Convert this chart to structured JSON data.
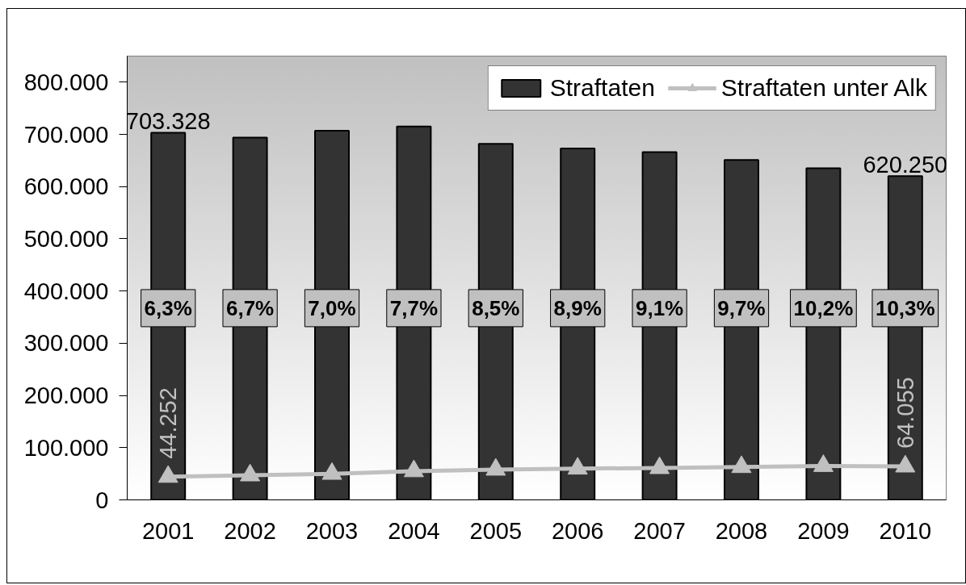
{
  "chart_data": {
    "type": "bar",
    "categories": [
      "2001",
      "2002",
      "2003",
      "2004",
      "2005",
      "2006",
      "2007",
      "2008",
      "2009",
      "2010"
    ],
    "series": [
      {
        "name": "Straftaten",
        "color": "#333333",
        "values": [
          703328,
          694000,
          707000,
          715000,
          682000,
          673000,
          666000,
          651000,
          635000,
          620250
        ],
        "value_labels": [
          "703.328",
          null,
          null,
          null,
          null,
          null,
          null,
          null,
          null,
          "620.250"
        ]
      },
      {
        "name": "Straftaten unter Alk",
        "type": "line",
        "color": "#c0c0c0",
        "values": [
          44252,
          47000,
          50000,
          55000,
          58000,
          60000,
          61000,
          63000,
          65000,
          64055
        ],
        "value_labels": [
          "44.252",
          null,
          null,
          null,
          null,
          null,
          null,
          null,
          null,
          "64.055"
        ]
      }
    ],
    "ylim": [
      0,
      850000
    ],
    "yticks": [
      0,
      {
        "value": 100000,
        "label": "100.000"
      },
      {
        "value": 200000,
        "label": "200.000"
      },
      {
        "value": 300000,
        "label": "300.000"
      },
      {
        "value": 400000,
        "label": "400.000"
      },
      {
        "value": 500000,
        "label": "500.000"
      },
      {
        "value": 600000,
        "label": "600.000"
      },
      {
        "value": 700000,
        "label": "700.000"
      },
      {
        "value": 800000,
        "label": "800.000"
      }
    ],
    "legend": "top right",
    "marker": "triangle",
    "line_style": "solid",
    "annotations": [
      "6,3%",
      "6,7%",
      "7,0%",
      "7,7%",
      "8,5%",
      "8,9%",
      "9,1%",
      "9,7%",
      "10,2%",
      "10,3%"
    ]
  }
}
